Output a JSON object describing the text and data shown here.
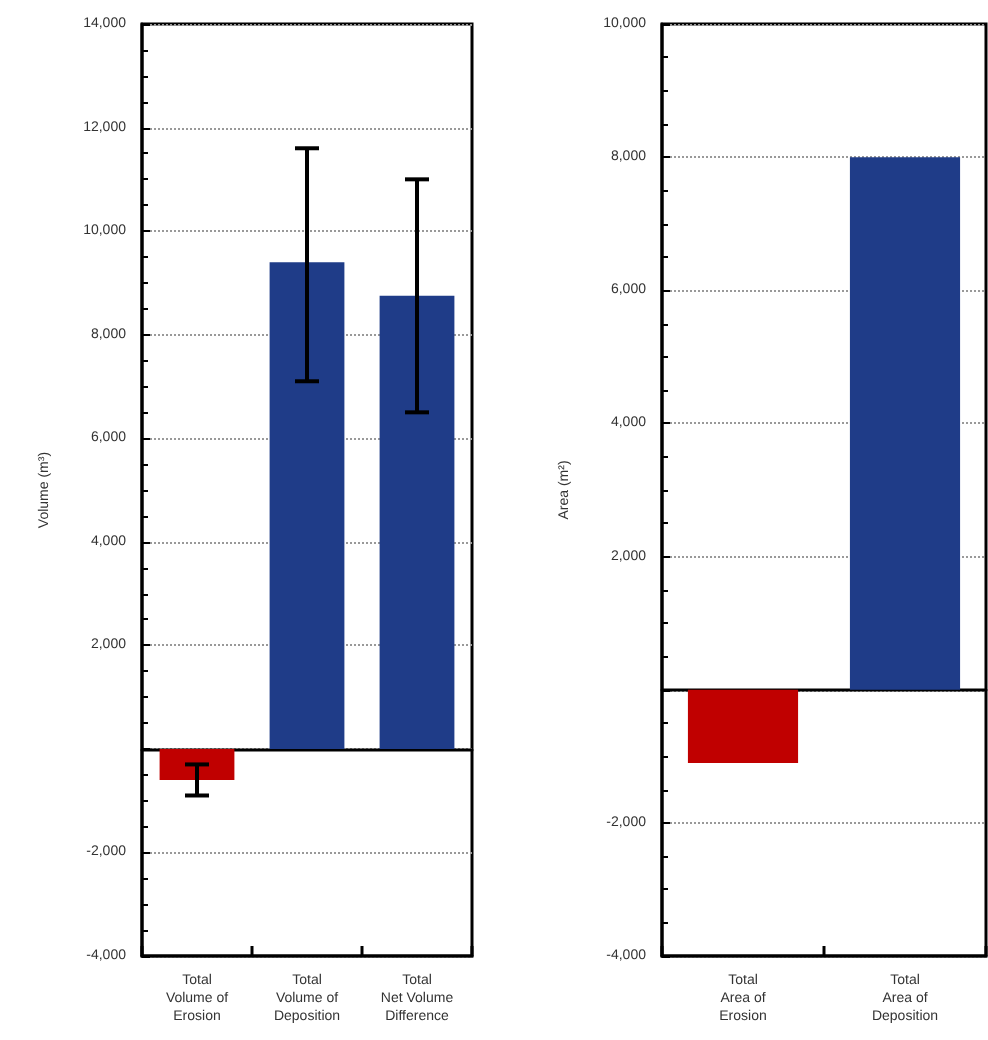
{
  "chart_data": [
    {
      "type": "bar",
      "ylabel": "Volume (m³)",
      "categories": [
        "Total\nVolume of\nErosion",
        "Total\nVolume of\nDeposition",
        "Total\nNet Volume\nDifference"
      ],
      "values": [
        -600,
        9400,
        8750
      ],
      "colors": [
        "#c00000",
        "#1f3c88",
        "#1f3c88"
      ],
      "errors": [
        [
          -900,
          -300
        ],
        [
          7100,
          11600
        ],
        [
          6500,
          11000
        ]
      ],
      "ylim": [
        -4000,
        14000
      ],
      "yticks": [
        {
          "value": -4000,
          "label": "-4,000"
        },
        {
          "value": -2000,
          "label": "-2,000"
        },
        {
          "value": 0,
          "label": null
        },
        {
          "value": 2000,
          "label": "2,000"
        },
        {
          "value": 4000,
          "label": "4,000"
        },
        {
          "value": 6000,
          "label": "6,000"
        },
        {
          "value": 8000,
          "label": "8,000"
        },
        {
          "value": 10000,
          "label": "10,000"
        },
        {
          "value": 12000,
          "label": "12,000"
        },
        {
          "value": 14000,
          "label": "14,000"
        }
      ],
      "grid": "y"
    },
    {
      "type": "bar",
      "ylabel": "Area (m²)",
      "categories": [
        "Total\nArea of\nErosion",
        "Total\nArea of\nDeposition"
      ],
      "values": [
        -1100,
        8000
      ],
      "colors": [
        "#c00000",
        "#1f3c88"
      ],
      "ylim": [
        -4000,
        10000
      ],
      "yticks": [
        {
          "value": -4000,
          "label": "-4,000"
        },
        {
          "value": -2000,
          "label": "-2,000"
        },
        {
          "value": 0,
          "label": null
        },
        {
          "value": 2000,
          "label": "2,000"
        },
        {
          "value": 4000,
          "label": "4,000"
        },
        {
          "value": 6000,
          "label": "6,000"
        },
        {
          "value": 8000,
          "label": "8,000"
        },
        {
          "value": 10000,
          "label": "10,000"
        }
      ],
      "grid": "y"
    }
  ]
}
